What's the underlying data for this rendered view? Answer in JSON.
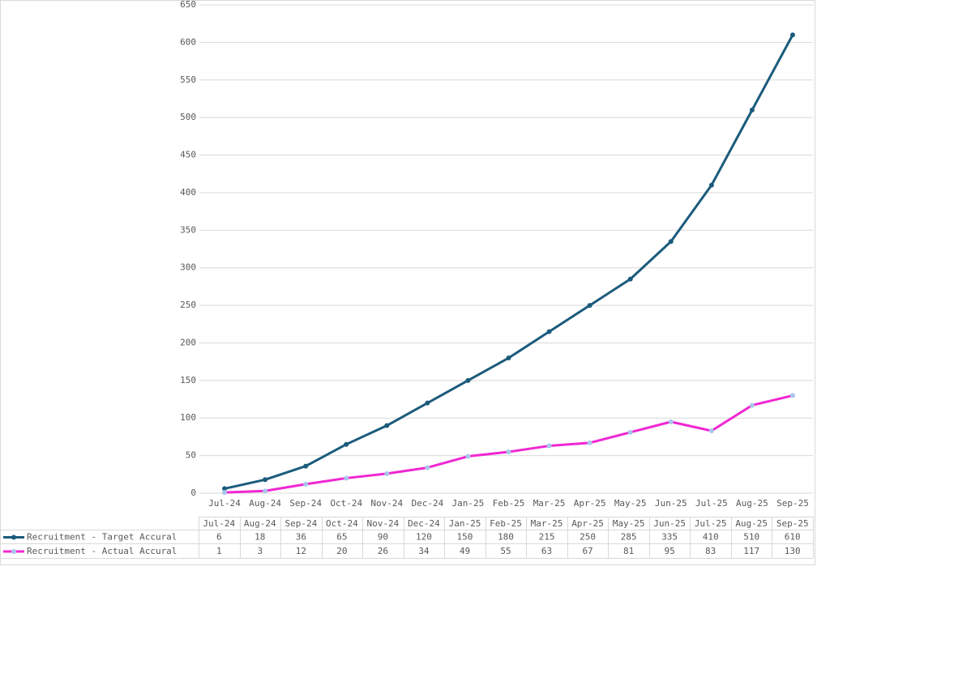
{
  "chart_data": {
    "type": "line",
    "categories": [
      "Jul-24",
      "Aug-24",
      "Sep-24",
      "Oct-24",
      "Nov-24",
      "Dec-24",
      "Jan-25",
      "Feb-25",
      "Mar-25",
      "Apr-25",
      "May-25",
      "Jun-25",
      "Jul-25",
      "Aug-25",
      "Sep-25"
    ],
    "series": [
      {
        "name": "Recruitment - Target Accural",
        "color": "#1b5b7c",
        "marker_color": "#1b5b7c",
        "values": [
          6,
          18,
          36,
          65,
          90,
          120,
          150,
          180,
          215,
          250,
          285,
          335,
          410,
          510,
          610
        ]
      },
      {
        "name": "Recruitment - Actual Accural",
        "color": "#f027d2",
        "marker_color": "#a9c6ea",
        "values": [
          1,
          3,
          12,
          20,
          26,
          34,
          49,
          55,
          63,
          67,
          81,
          95,
          83,
          117,
          130
        ]
      }
    ],
    "ylim": [
      0,
      650
    ],
    "yticks": [
      0,
      50,
      100,
      150,
      200,
      250,
      300,
      350,
      400,
      450,
      500,
      550,
      600,
      650
    ],
    "grid": true,
    "data_table": true
  }
}
